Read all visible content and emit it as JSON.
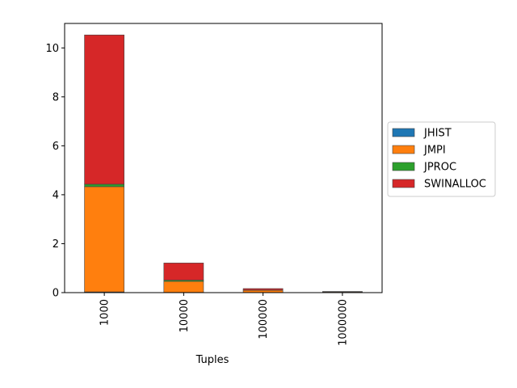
{
  "chart_data": {
    "type": "bar",
    "stacked": true,
    "title": "",
    "xlabel": "Tuples",
    "ylabel": "",
    "categories": [
      "1000",
      "10000",
      "100000",
      "1000000"
    ],
    "ylim": [
      0,
      11
    ],
    "yticks": [
      0,
      2,
      4,
      6,
      8,
      10
    ],
    "legend_position": "center-right-outside",
    "grid": false,
    "series": [
      {
        "name": "JHIST",
        "color": "#1f77b4",
        "values": [
          0.03,
          0.01,
          0.005,
          0.002
        ]
      },
      {
        "name": "JMPI",
        "color": "#ff7f0e",
        "values": [
          4.3,
          0.45,
          0.09,
          0.03
        ]
      },
      {
        "name": "JPROC",
        "color": "#2ca02c",
        "values": [
          0.1,
          0.05,
          0.01,
          0.005
        ]
      },
      {
        "name": "SWINALLOC",
        "color": "#d62728",
        "values": [
          6.1,
          0.7,
          0.06,
          0.01
        ]
      }
    ]
  }
}
